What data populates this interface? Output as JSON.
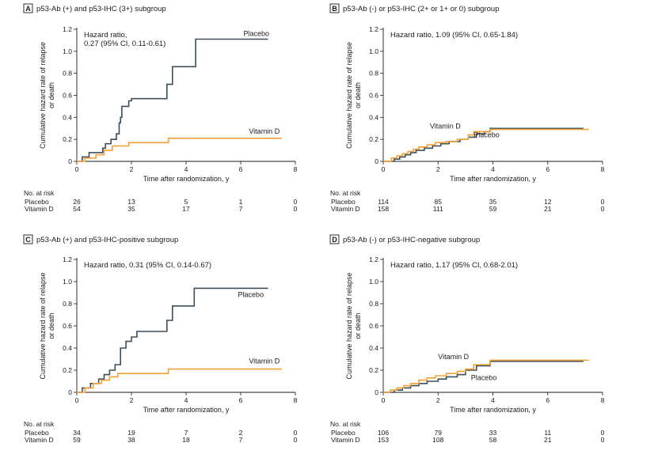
{
  "chart_data": [
    {
      "type": "line",
      "panel": "A",
      "title": "p53-Ab (+) and p53-IHC (3+) subgroup",
      "xlabel": "Time after randomization, y",
      "ylabel": "Cumulative hazard rate of relapse or death",
      "ylabel_lines": [
        "Cumulative hazard rate of relapse",
        "or death"
      ],
      "xlim": [
        0,
        8
      ],
      "ylim": [
        0,
        1.2
      ],
      "xticks": [
        0,
        2,
        4,
        6,
        8
      ],
      "yticks": [
        0,
        0.2,
        0.4,
        0.6,
        0.8,
        1.0,
        1.2
      ],
      "ytick_labels": [
        "0",
        "0.2",
        "0.4",
        "0.6",
        "0.8",
        "1.0",
        "1.2"
      ],
      "annotation_lines": [
        "Hazard ratio,",
        "0.27 (95% CI, 0.11-0.61)"
      ],
      "series": [
        {
          "name": "Placebo",
          "color": "#3a4e5c",
          "label_pos": [
            6.1,
            1.14
          ],
          "label_anchor": "start",
          "x": [
            0,
            0.2,
            0.45,
            0.95,
            1.05,
            1.25,
            1.45,
            1.55,
            1.6,
            1.65,
            1.9,
            2.0,
            3.3,
            3.5,
            3.7,
            4.35,
            7.0
          ],
          "y": [
            0,
            0.04,
            0.08,
            0.12,
            0.16,
            0.2,
            0.25,
            0.35,
            0.4,
            0.5,
            0.55,
            0.57,
            0.7,
            0.86,
            0.86,
            1.11,
            1.11
          ]
        },
        {
          "name": "Vitamin D",
          "color": "#f0a035",
          "label_pos": [
            6.3,
            0.25
          ],
          "label_anchor": "start",
          "x": [
            0,
            0.3,
            0.7,
            1.0,
            1.3,
            1.9,
            3.35,
            7.5
          ],
          "y": [
            0,
            0.03,
            0.06,
            0.1,
            0.14,
            0.17,
            0.21,
            0.21
          ]
        }
      ],
      "risk_table": {
        "header": "No. at risk",
        "times": [
          0,
          2,
          4,
          6,
          8
        ],
        "rows": [
          {
            "label": "Placebo",
            "values": [
              "26",
              "13",
              "5",
              "1",
              "0"
            ]
          },
          {
            "label": "Vitamin D",
            "values": [
              "54",
              "35",
              "17",
              "7",
              "0"
            ]
          }
        ]
      }
    },
    {
      "type": "line",
      "panel": "B",
      "title": "p53-Ab (-) or p53-IHC (2+ or 1+ or 0) subgroup",
      "xlabel": "Time after randomization, y",
      "ylabel": "Cumulative hazard rate of relapse or death",
      "ylabel_lines": [
        "Cumulative hazard rate of relapse",
        "or death"
      ],
      "xlim": [
        0,
        8
      ],
      "ylim": [
        0,
        1.2
      ],
      "xticks": [
        0,
        2,
        4,
        6,
        8
      ],
      "yticks": [
        0,
        0.2,
        0.4,
        0.6,
        0.8,
        1.0,
        1.2
      ],
      "ytick_labels": [
        "0",
        "0.2",
        "0.4",
        "0.6",
        "0.8",
        "1.0",
        "1.2"
      ],
      "annotation_lines": [
        "Hazard ratio, 1.09 (95% CI, 0.65-1.84)"
      ],
      "series": [
        {
          "name": "Placebo",
          "color": "#3a4e5c",
          "label_pos": [
            3.3,
            0.22
          ],
          "label_anchor": "start",
          "x": [
            0,
            0.4,
            0.6,
            0.8,
            1.0,
            1.2,
            1.5,
            1.8,
            2.1,
            2.4,
            2.8,
            3.1,
            3.4,
            3.7,
            3.9,
            7.3
          ],
          "y": [
            0,
            0.02,
            0.04,
            0.06,
            0.08,
            0.1,
            0.12,
            0.14,
            0.16,
            0.18,
            0.2,
            0.22,
            0.25,
            0.27,
            0.3,
            0.3
          ]
        },
        {
          "name": "Vitamin D",
          "color": "#f0a035",
          "label_pos": [
            1.7,
            0.3
          ],
          "label_anchor": "start",
          "x": [
            0,
            0.3,
            0.5,
            0.7,
            0.9,
            1.1,
            1.3,
            1.6,
            1.9,
            2.3,
            2.7,
            3.1,
            3.3,
            3.9,
            7.5
          ],
          "y": [
            0,
            0.03,
            0.05,
            0.07,
            0.09,
            0.11,
            0.13,
            0.15,
            0.17,
            0.18,
            0.2,
            0.24,
            0.27,
            0.29,
            0.29
          ]
        }
      ],
      "risk_table": {
        "header": "No. at risk",
        "times": [
          0,
          2,
          4,
          6,
          8
        ],
        "rows": [
          {
            "label": "Placebo",
            "values": [
              "114",
              "85",
              "35",
              "12",
              "0"
            ]
          },
          {
            "label": "Vitamin D",
            "values": [
              "158",
              "111",
              "59",
              "21",
              "0"
            ]
          }
        ]
      }
    },
    {
      "type": "line",
      "panel": "C",
      "title": "p53-Ab (+) and p53-IHC-positive subgroup",
      "xlabel": "Time after randomization, y",
      "ylabel": "Cumulative hazard rate of relapse or death",
      "ylabel_lines": [
        "Cumulative hazard rate of relapse",
        "or death"
      ],
      "xlim": [
        0,
        8
      ],
      "ylim": [
        0,
        1.2
      ],
      "xticks": [
        0,
        2,
        4,
        6,
        8
      ],
      "yticks": [
        0,
        0.2,
        0.4,
        0.6,
        0.8,
        1.0,
        1.2
      ],
      "ytick_labels": [
        "0",
        "0.2",
        "0.4",
        "0.6",
        "0.8",
        "1.0",
        "1.2"
      ],
      "annotation_lines": [
        "Hazard ratio, 0.31 (95% CI, 0.14-0.67)"
      ],
      "series": [
        {
          "name": "Placebo",
          "color": "#3a4e5c",
          "label_pos": [
            5.9,
            0.86
          ],
          "label_anchor": "start",
          "x": [
            0,
            0.2,
            0.5,
            0.8,
            1.0,
            1.2,
            1.4,
            1.6,
            1.8,
            2.0,
            2.2,
            3.3,
            3.5,
            4.3,
            7.0
          ],
          "y": [
            0,
            0.04,
            0.08,
            0.12,
            0.16,
            0.2,
            0.25,
            0.4,
            0.46,
            0.5,
            0.55,
            0.65,
            0.78,
            0.94,
            0.94
          ]
        },
        {
          "name": "Vitamin D",
          "color": "#f0a035",
          "label_pos": [
            6.3,
            0.26
          ],
          "label_anchor": "start",
          "x": [
            0,
            0.3,
            0.6,
            0.9,
            1.2,
            1.5,
            3.35,
            7.5
          ],
          "y": [
            0,
            0.04,
            0.08,
            0.11,
            0.14,
            0.17,
            0.21,
            0.21
          ]
        }
      ],
      "risk_table": {
        "header": "No. at risk",
        "times": [
          0,
          2,
          4,
          6,
          8
        ],
        "rows": [
          {
            "label": "Placebo",
            "values": [
              "34",
              "19",
              "7",
              "2",
              "0"
            ]
          },
          {
            "label": "Vitamin D",
            "values": [
              "59",
              "38",
              "18",
              "7",
              "0"
            ]
          }
        ]
      }
    },
    {
      "type": "line",
      "panel": "D",
      "title": "p53-Ab (-) or p53-IHC-negative subgroup",
      "xlabel": "Time after randomization, y",
      "ylabel": "Cumulative hazard rate of relapse or death",
      "ylabel_lines": [
        "Cumulative hazard rate of relapse",
        "or death"
      ],
      "xlim": [
        0,
        8
      ],
      "ylim": [
        0,
        1.2
      ],
      "xticks": [
        0,
        2,
        4,
        6,
        8
      ],
      "yticks": [
        0,
        0.2,
        0.4,
        0.6,
        0.8,
        1.0,
        1.2
      ],
      "ytick_labels": [
        "0",
        "0.2",
        "0.4",
        "0.6",
        "0.8",
        "1.0",
        "1.2"
      ],
      "annotation_lines": [
        "Hazard ratio, 1.17 (95% CI, 0.68-2.01)"
      ],
      "series": [
        {
          "name": "Placebo",
          "color": "#3a4e5c",
          "label_pos": [
            3.2,
            0.11
          ],
          "label_anchor": "start",
          "x": [
            0,
            0.4,
            0.7,
            1.0,
            1.3,
            1.6,
            2.0,
            2.3,
            2.7,
            3.0,
            3.4,
            3.9,
            7.3
          ],
          "y": [
            0,
            0.02,
            0.04,
            0.06,
            0.08,
            0.1,
            0.12,
            0.14,
            0.16,
            0.2,
            0.24,
            0.28,
            0.28
          ]
        },
        {
          "name": "Vitamin D",
          "color": "#f0a035",
          "label_pos": [
            2.0,
            0.3
          ],
          "label_anchor": "start",
          "x": [
            0,
            0.25,
            0.5,
            0.75,
            1.0,
            1.3,
            1.6,
            1.9,
            2.3,
            2.7,
            3.0,
            3.3,
            3.9,
            7.5
          ],
          "y": [
            0,
            0.02,
            0.04,
            0.06,
            0.08,
            0.11,
            0.13,
            0.15,
            0.17,
            0.19,
            0.21,
            0.25,
            0.29,
            0.29
          ]
        }
      ],
      "risk_table": {
        "header": "No. at risk",
        "times": [
          0,
          2,
          4,
          6,
          8
        ],
        "rows": [
          {
            "label": "Placebo",
            "values": [
              "106",
              "79",
              "33",
              "11",
              "0"
            ]
          },
          {
            "label": "Vitamin D",
            "values": [
              "153",
              "108",
              "58",
              "21",
              "0"
            ]
          }
        ]
      }
    }
  ]
}
